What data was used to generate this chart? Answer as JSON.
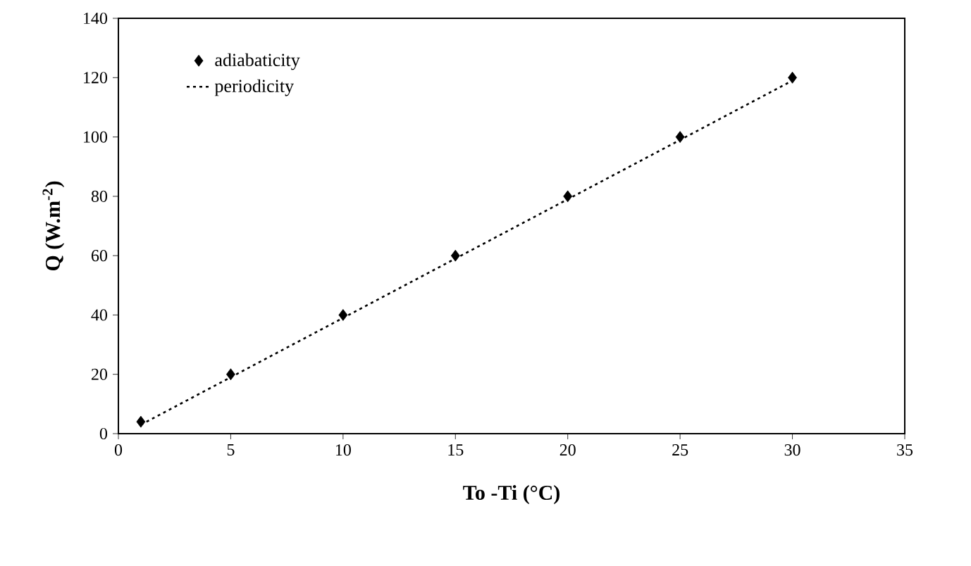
{
  "chart_data": {
    "type": "scatter",
    "xlabel": "To -Ti (°C)",
    "ylabel": "Q (W.m$^{-2}$)",
    "x": [
      1,
      5,
      10,
      15,
      20,
      25,
      30
    ],
    "series": [
      {
        "name": "adiabaticity",
        "color": "#000000",
        "marker": "diamond",
        "values": [
          4,
          20,
          40,
          60,
          80,
          100,
          120
        ]
      },
      {
        "name": "periodicity",
        "type": "line",
        "color": "#000000",
        "line_style": "dotted",
        "marker": "none",
        "values": [
          3,
          19,
          39,
          59,
          79,
          99,
          119
        ]
      }
    ],
    "xlim": [
      0,
      35
    ],
    "ylim": [
      0,
      140
    ],
    "xticks": [
      0,
      5,
      10,
      15,
      20,
      25,
      30,
      35
    ],
    "yticks": [
      0,
      20,
      40,
      60,
      80,
      100,
      120,
      140
    ],
    "grid": false,
    "legend": "top left"
  }
}
